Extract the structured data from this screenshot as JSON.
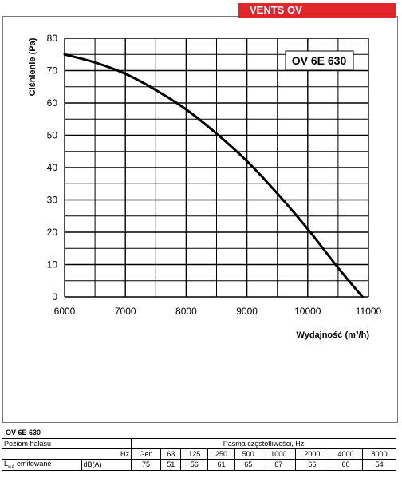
{
  "brand": "VENTS OV",
  "chart_data": {
    "type": "line",
    "model_label": "OV 6E 630",
    "ylabel": "Ciśnienie (Pa)",
    "xlabel": "Wydajność (m³/h)",
    "xlim": [
      6000,
      11000
    ],
    "ylim": [
      0,
      80
    ],
    "x_ticks": [
      6000,
      7000,
      8000,
      9000,
      10000,
      11000
    ],
    "y_ticks": [
      0,
      10,
      20,
      30,
      40,
      50,
      60,
      70,
      80
    ],
    "grid": true,
    "series": [
      {
        "x": [
          6000,
          6500,
          7000,
          7500,
          8000,
          8500,
          9000,
          9500,
          10000,
          10500,
          10900
        ],
        "y": [
          75,
          72.5,
          69,
          64,
          58,
          50.5,
          42,
          32,
          21,
          9,
          0
        ]
      }
    ]
  },
  "table": {
    "model": "OV 6E 630",
    "row1_label": "Poziom hałasu",
    "band_header": "Pasma częstotliwości, Hz",
    "hz_label": "Hz",
    "headers": [
      "Gen",
      "63",
      "125",
      "250",
      "500",
      "1000",
      "2000",
      "4000",
      "8000"
    ],
    "row_label": "LwA emitowane",
    "unit": "dB(A)",
    "values": [
      "75",
      "51",
      "56",
      "61",
      "65",
      "67",
      "66",
      "60",
      "54"
    ]
  }
}
